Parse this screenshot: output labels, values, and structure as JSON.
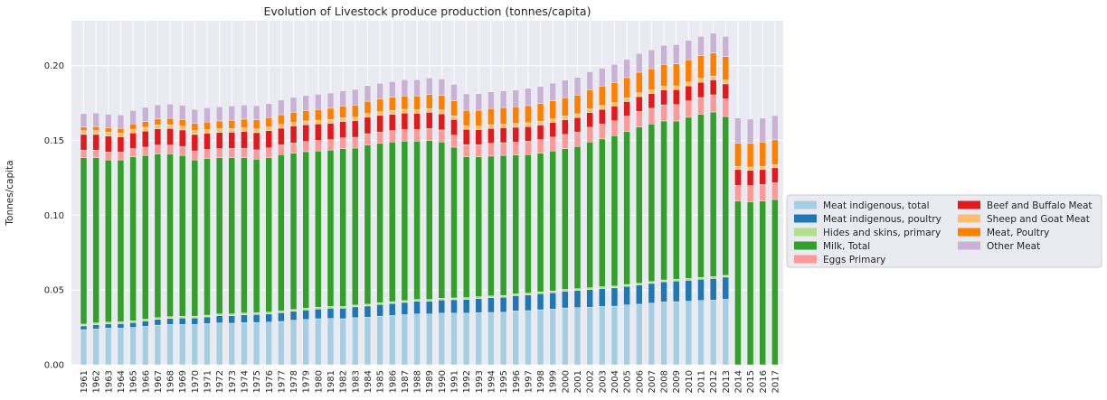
{
  "chart_data": {
    "type": "bar",
    "stacked": true,
    "title": "Evolution of Livestock produce production (tonnes/capita)",
    "xlabel": "",
    "ylabel": "Tonnes/capita",
    "ylim": [
      0,
      0.23
    ],
    "yticks": [
      0.0,
      0.05,
      0.1,
      0.15,
      0.2
    ],
    "ytick_labels": [
      "0.00",
      "0.05",
      "0.10",
      "0.15",
      "0.20"
    ],
    "grid": true,
    "legend_position": "center-right outside",
    "categories": [
      "1961",
      "1962",
      "1963",
      "1964",
      "1965",
      "1966",
      "1967",
      "1968",
      "1969",
      "1970",
      "1971",
      "1972",
      "1973",
      "1974",
      "1975",
      "1976",
      "1977",
      "1978",
      "1979",
      "1980",
      "1981",
      "1982",
      "1983",
      "1984",
      "1985",
      "1986",
      "1987",
      "1988",
      "1989",
      "1990",
      "1991",
      "1992",
      "1993",
      "1994",
      "1995",
      "1996",
      "1997",
      "1998",
      "1999",
      "2000",
      "2001",
      "2002",
      "2003",
      "2004",
      "2005",
      "2006",
      "2007",
      "2008",
      "2009",
      "2010",
      "2011",
      "2012",
      "2013",
      "2014",
      "2015",
      "2016",
      "2017"
    ],
    "series": [
      {
        "name": "Meat indigenous, total",
        "color": "#a6cee3",
        "values": [
          0.0235,
          0.024,
          0.0245,
          0.0245,
          0.025,
          0.0258,
          0.0265,
          0.027,
          0.027,
          0.027,
          0.0275,
          0.028,
          0.0278,
          0.0282,
          0.0283,
          0.0285,
          0.029,
          0.0298,
          0.0303,
          0.0308,
          0.031,
          0.0308,
          0.0315,
          0.0318,
          0.0325,
          0.033,
          0.0335,
          0.034,
          0.034,
          0.0345,
          0.0345,
          0.0345,
          0.0348,
          0.035,
          0.0352,
          0.036,
          0.0362,
          0.0368,
          0.0372,
          0.038,
          0.0382,
          0.0385,
          0.039,
          0.0392,
          0.04,
          0.0405,
          0.0412,
          0.042,
          0.0422,
          0.0425,
          0.043,
          0.0432,
          0.0438,
          0,
          0,
          0,
          0
        ]
      },
      {
        "name": "Meat indigenous, poultry",
        "color": "#1f78b4",
        "values": [
          0.0025,
          0.0028,
          0.0028,
          0.003,
          0.0032,
          0.0035,
          0.0038,
          0.004,
          0.0042,
          0.0043,
          0.0045,
          0.0048,
          0.005,
          0.0052,
          0.0053,
          0.0055,
          0.0058,
          0.006,
          0.0063,
          0.0065,
          0.0068,
          0.007,
          0.0072,
          0.0075,
          0.0078,
          0.008,
          0.0082,
          0.0085,
          0.0085,
          0.0088,
          0.009,
          0.0092,
          0.0095,
          0.0098,
          0.01,
          0.0102,
          0.0105,
          0.0108,
          0.011,
          0.0112,
          0.0115,
          0.0118,
          0.012,
          0.0122,
          0.0125,
          0.0128,
          0.0132,
          0.0135,
          0.0138,
          0.014,
          0.0142,
          0.0145,
          0.0148,
          0,
          0,
          0,
          0
        ]
      },
      {
        "name": "Hides and skins, primary",
        "color": "#b2df8a",
        "values": [
          0.0012,
          0.0012,
          0.0012,
          0.0012,
          0.0012,
          0.0012,
          0.0012,
          0.0012,
          0.0012,
          0.0012,
          0.0012,
          0.0012,
          0.0012,
          0.0012,
          0.0012,
          0.0012,
          0.0012,
          0.0012,
          0.0012,
          0.0012,
          0.0012,
          0.0012,
          0.0012,
          0.0012,
          0.0012,
          0.0012,
          0.0012,
          0.0012,
          0.0012,
          0.0012,
          0.0012,
          0.0012,
          0.0012,
          0.0012,
          0.0012,
          0.0012,
          0.0012,
          0.0012,
          0.0012,
          0.0012,
          0.0012,
          0.0012,
          0.0012,
          0.0012,
          0.0012,
          0.0012,
          0.0012,
          0.0012,
          0.0012,
          0.0012,
          0.0012,
          0.0012,
          0.0012,
          0,
          0,
          0,
          0
        ]
      },
      {
        "name": "Milk, Total",
        "color": "#33a02c",
        "values": [
          0.1113,
          0.1105,
          0.1085,
          0.1083,
          0.1096,
          0.1095,
          0.1095,
          0.1088,
          0.1076,
          0.1045,
          0.1048,
          0.1045,
          0.1045,
          0.1039,
          0.1027,
          0.1033,
          0.1045,
          0.1045,
          0.1047,
          0.1045,
          0.1045,
          0.1055,
          0.105,
          0.1065,
          0.1065,
          0.1068,
          0.1066,
          0.1058,
          0.1063,
          0.1045,
          0.1008,
          0.0941,
          0.0935,
          0.0935,
          0.0936,
          0.0928,
          0.0926,
          0.0927,
          0.0936,
          0.0941,
          0.0951,
          0.0975,
          0.0988,
          0.1006,
          0.1023,
          0.1045,
          0.1054,
          0.1063,
          0.1058,
          0.1078,
          0.1091,
          0.1101,
          0.1062,
          0.1095,
          0.109,
          0.1095,
          0.1105
        ]
      },
      {
        "name": "Eggs Primary",
        "color": "#fb9a99",
        "values": [
          0.005,
          0.005,
          0.0052,
          0.0052,
          0.0055,
          0.0055,
          0.0058,
          0.0058,
          0.006,
          0.006,
          0.006,
          0.006,
          0.0062,
          0.0062,
          0.0062,
          0.0065,
          0.0065,
          0.0068,
          0.0068,
          0.007,
          0.007,
          0.0072,
          0.0072,
          0.0075,
          0.0075,
          0.0075,
          0.0078,
          0.0078,
          0.008,
          0.008,
          0.008,
          0.0082,
          0.0082,
          0.0085,
          0.0085,
          0.0088,
          0.009,
          0.009,
          0.0092,
          0.0095,
          0.0095,
          0.0098,
          0.01,
          0.01,
          0.0102,
          0.0105,
          0.0105,
          0.0108,
          0.011,
          0.011,
          0.0112,
          0.0115,
          0.0118,
          0.0105,
          0.0108,
          0.011,
          0.0112
        ]
      },
      {
        "name": "Beef and Buffalo Meat",
        "color": "#e31a1c",
        "values": [
          0.0105,
          0.0105,
          0.0108,
          0.0102,
          0.0105,
          0.0108,
          0.011,
          0.0112,
          0.011,
          0.011,
          0.0108,
          0.0108,
          0.0108,
          0.0112,
          0.0115,
          0.0115,
          0.0112,
          0.0112,
          0.0112,
          0.011,
          0.011,
          0.011,
          0.011,
          0.011,
          0.0112,
          0.011,
          0.011,
          0.0108,
          0.0108,
          0.0108,
          0.0105,
          0.0102,
          0.01,
          0.01,
          0.01,
          0.0098,
          0.0098,
          0.0098,
          0.0098,
          0.0098,
          0.0098,
          0.0098,
          0.0098,
          0.0098,
          0.0098,
          0.0098,
          0.0098,
          0.01,
          0.01,
          0.01,
          0.0102,
          0.01,
          0.01,
          0.0105,
          0.0102,
          0.01,
          0.01
        ]
      },
      {
        "name": "Sheep and Goat Meat",
        "color": "#fdbf6f",
        "values": [
          0.0025,
          0.0025,
          0.0025,
          0.0025,
          0.0025,
          0.0025,
          0.0025,
          0.0025,
          0.0025,
          0.0025,
          0.0025,
          0.0025,
          0.0025,
          0.0025,
          0.0025,
          0.0025,
          0.0025,
          0.0025,
          0.0025,
          0.0025,
          0.0025,
          0.0025,
          0.0025,
          0.0025,
          0.0025,
          0.0025,
          0.0025,
          0.0025,
          0.0025,
          0.0025,
          0.0025,
          0.0025,
          0.0025,
          0.0025,
          0.0025,
          0.0025,
          0.0025,
          0.0025,
          0.0025,
          0.0025,
          0.0025,
          0.0025,
          0.0025,
          0.0025,
          0.0025,
          0.0025,
          0.0025,
          0.0025,
          0.0025,
          0.0025,
          0.0025,
          0.0025,
          0.0025,
          0.0022,
          0.0022,
          0.0022,
          0.0022
        ]
      },
      {
        "name": "Meat, Poultry",
        "color": "#ff7f00",
        "values": [
          0.0025,
          0.0028,
          0.003,
          0.0032,
          0.0035,
          0.0038,
          0.004,
          0.0043,
          0.0045,
          0.0048,
          0.005,
          0.0052,
          0.0055,
          0.0058,
          0.006,
          0.0062,
          0.0065,
          0.0068,
          0.007,
          0.0072,
          0.0075,
          0.0078,
          0.008,
          0.0082,
          0.0085,
          0.0088,
          0.009,
          0.0092,
          0.0095,
          0.0098,
          0.01,
          0.0102,
          0.0105,
          0.0108,
          0.011,
          0.0112,
          0.0115,
          0.0118,
          0.012,
          0.0122,
          0.0125,
          0.0128,
          0.013,
          0.0132,
          0.0135,
          0.0138,
          0.0142,
          0.0145,
          0.0148,
          0.015,
          0.0152,
          0.0155,
          0.0158,
          0.0155,
          0.0158,
          0.0162,
          0.0165
        ]
      },
      {
        "name": "Other Meat",
        "color": "#cab2d6",
        "values": [
          0.009,
          0.009,
          0.009,
          0.009,
          0.009,
          0.0095,
          0.0095,
          0.0095,
          0.0095,
          0.0095,
          0.0095,
          0.0095,
          0.0095,
          0.0095,
          0.0095,
          0.0095,
          0.0098,
          0.01,
          0.01,
          0.0102,
          0.0102,
          0.0102,
          0.0105,
          0.0105,
          0.0105,
          0.0105,
          0.0108,
          0.0108,
          0.011,
          0.011,
          0.011,
          0.011,
          0.011,
          0.0112,
          0.0112,
          0.0112,
          0.0115,
          0.0115,
          0.0118,
          0.0118,
          0.0118,
          0.012,
          0.012,
          0.0122,
          0.0122,
          0.0125,
          0.0125,
          0.0128,
          0.0128,
          0.013,
          0.013,
          0.0132,
          0.0135,
          0.0168,
          0.0162,
          0.016,
          0.0162
        ]
      }
    ]
  }
}
